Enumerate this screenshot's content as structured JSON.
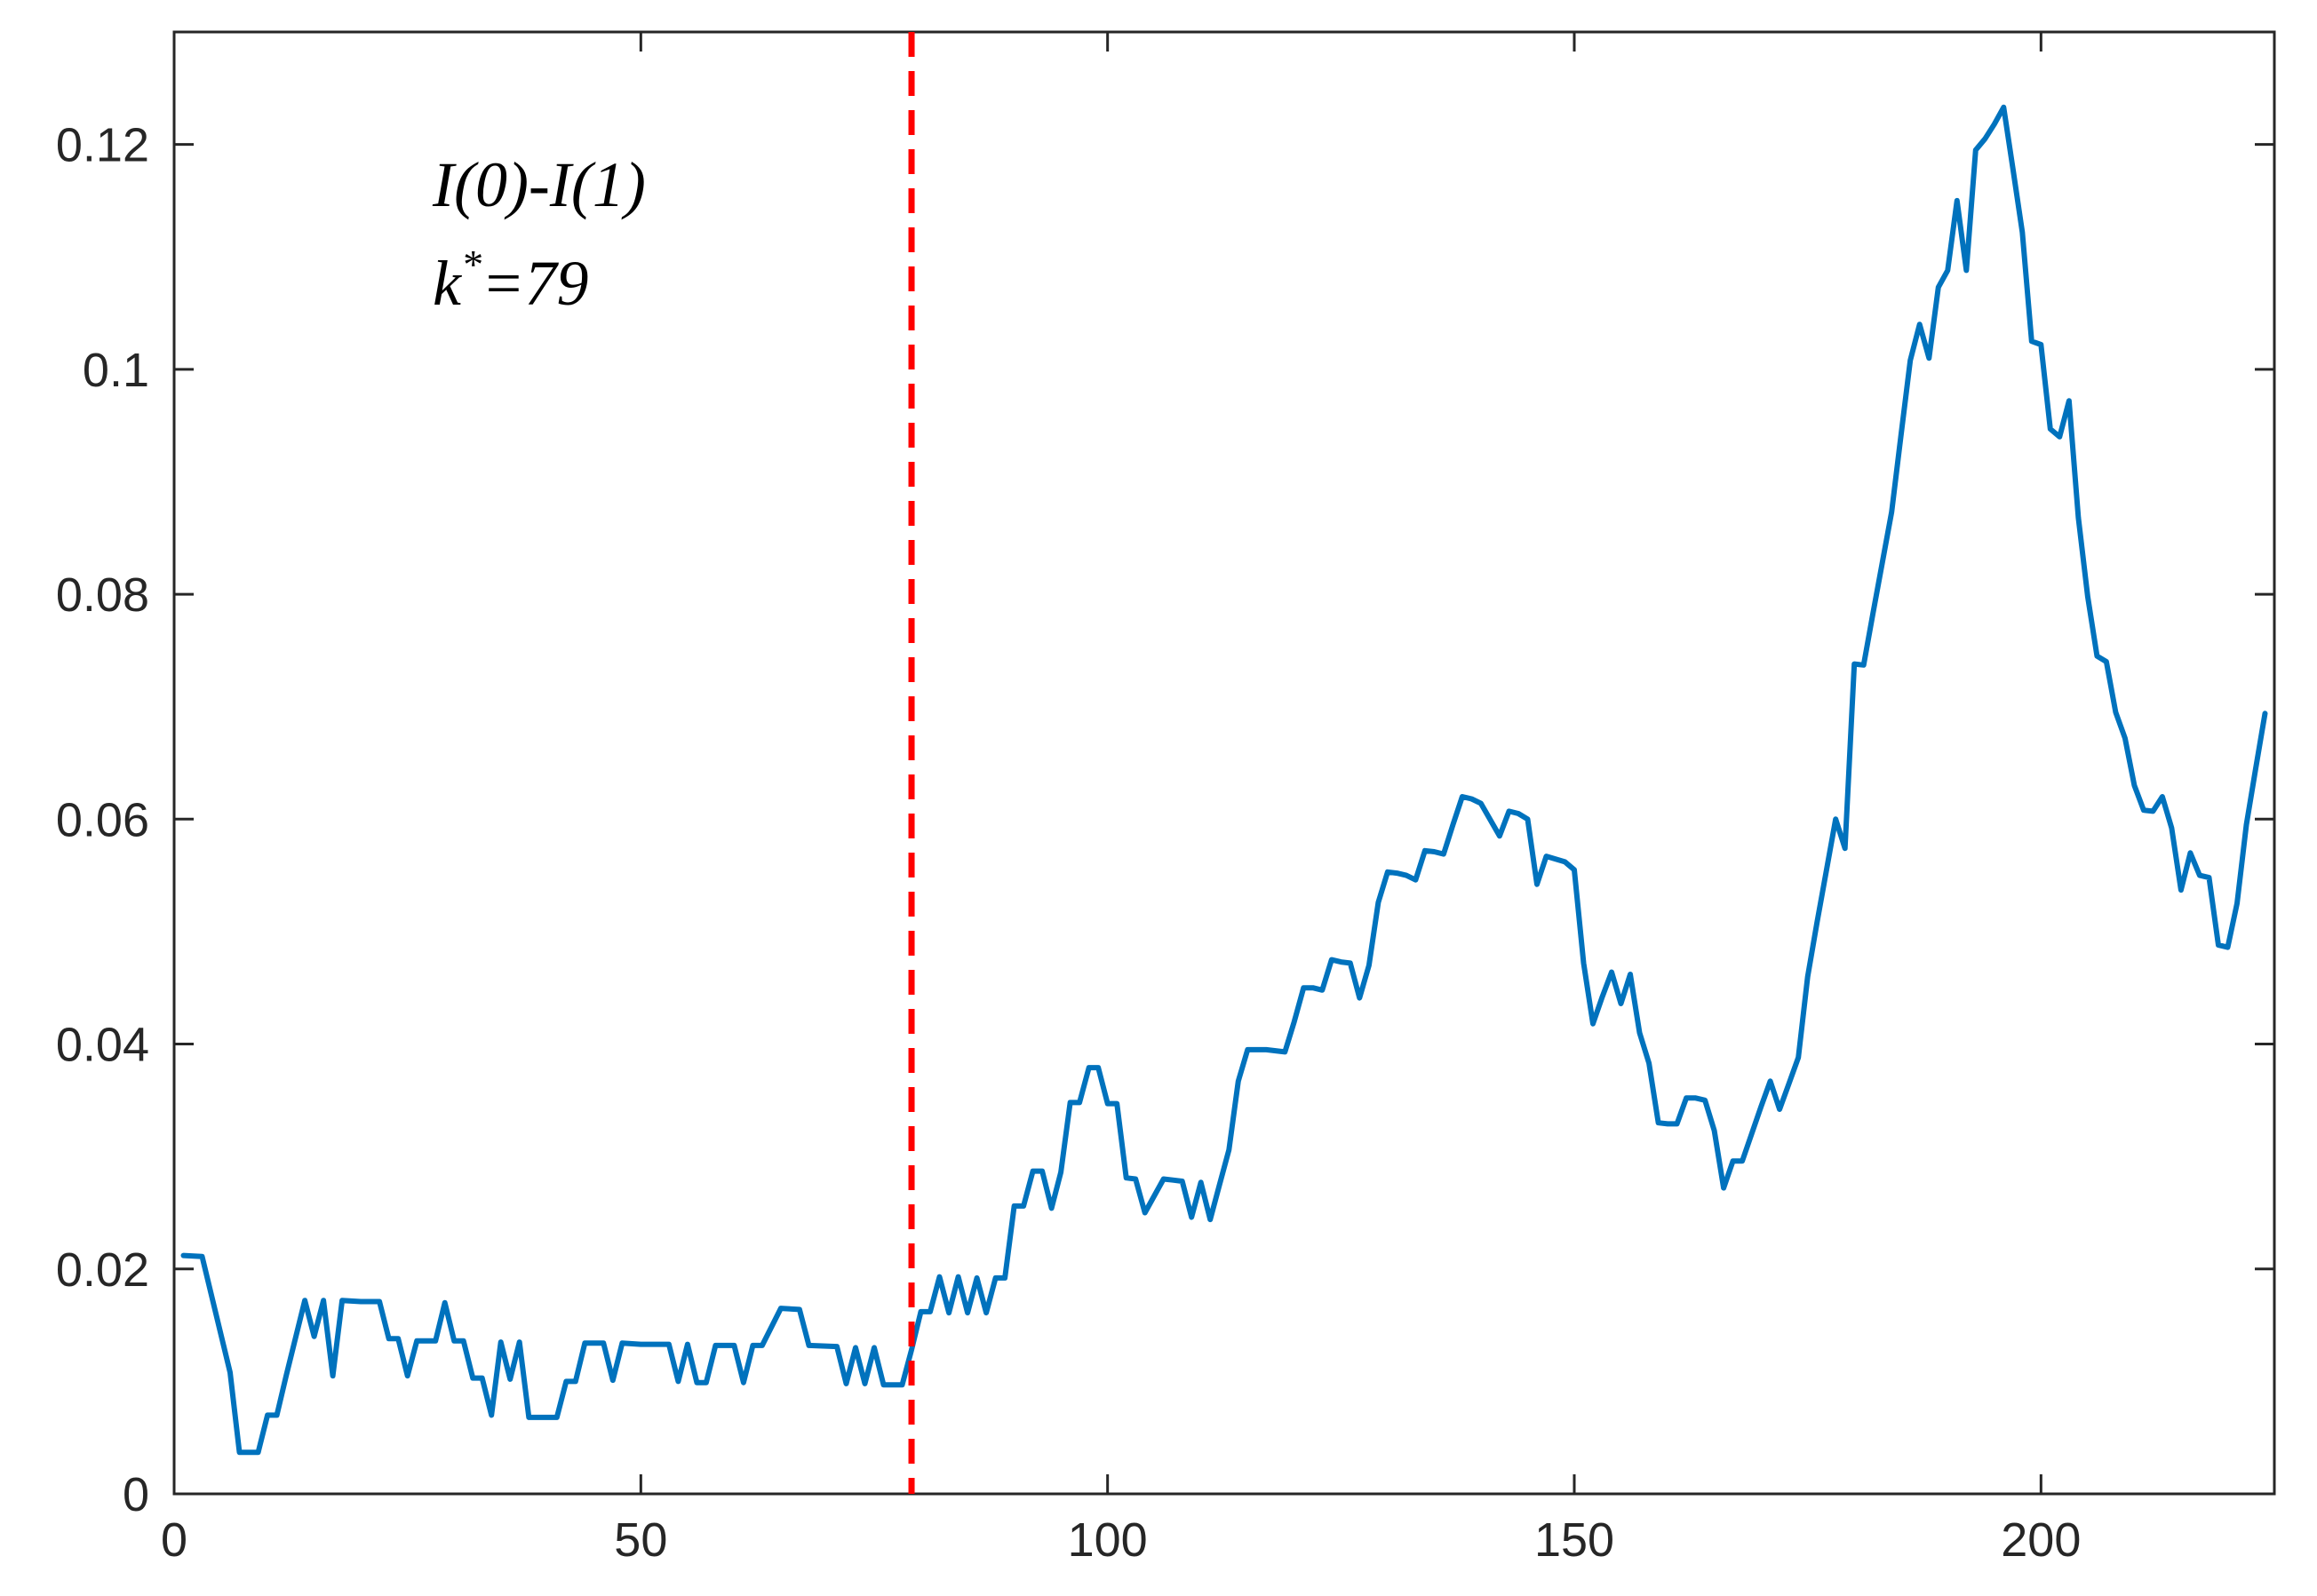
{
  "chart_data": {
    "type": "line",
    "title": "",
    "xlabel": "",
    "ylabel": "",
    "xlim": [
      0,
      225
    ],
    "ylim": [
      0,
      0.13
    ],
    "xticks": [
      0,
      50,
      100,
      150,
      200
    ],
    "xtick_labels": [
      "0",
      "50",
      "100",
      "150",
      "200"
    ],
    "yticks": [
      0,
      0.02,
      0.04,
      0.06,
      0.08,
      0.1,
      0.12
    ],
    "ytick_labels": [
      "0",
      "0.02",
      "0.04",
      "0.06",
      "0.08",
      "0.1",
      "0.12"
    ],
    "grid": false,
    "colors": {
      "series": "#0072BD",
      "changepoint": "#FF0000",
      "axes": "#262626"
    },
    "annotation": {
      "line1": "I(0)-I(1)",
      "line2_base": "k",
      "line2_sup": "*",
      "line2_rest": "=79"
    },
    "changepoint": {
      "x": 79,
      "style": "dashed"
    },
    "series": [
      {
        "x": [
          1,
          3,
          6,
          7,
          9,
          10,
          11,
          12,
          14,
          15,
          16,
          17,
          18,
          20,
          22,
          23,
          24,
          25,
          26,
          28,
          29,
          30,
          31,
          32,
          33,
          34,
          35,
          36,
          37,
          38,
          39,
          41,
          42,
          43,
          44,
          46,
          47,
          48,
          50,
          53,
          54,
          55,
          56,
          57,
          58,
          60,
          61,
          62,
          63,
          65,
          67,
          68,
          71,
          72,
          73,
          74,
          75,
          76,
          78,
          79,
          80,
          81,
          82,
          83,
          84,
          85,
          86,
          87,
          88,
          89,
          90,
          91,
          92,
          93,
          94,
          95,
          96,
          97,
          98,
          99,
          100,
          101,
          102,
          103,
          104,
          106,
          107,
          108,
          109,
          110,
          111,
          112,
          113,
          114,
          115,
          116,
          117,
          119,
          120,
          121,
          122,
          123,
          124,
          125,
          126,
          127,
          128,
          129,
          130,
          131,
          132,
          133,
          134,
          135,
          136,
          137,
          138,
          139,
          140,
          142,
          143,
          144,
          145,
          146,
          147,
          149,
          150,
          151,
          152,
          153,
          154,
          155,
          156,
          157,
          158,
          159,
          160,
          161,
          162,
          163,
          164,
          165,
          166,
          167,
          168,
          169,
          170,
          171,
          172,
          173,
          174,
          175,
          176,
          177,
          178,
          179,
          180,
          181,
          182,
          183,
          184,
          185,
          186,
          187,
          188,
          189,
          190,
          191,
          192,
          193,
          194,
          195,
          196,
          197,
          198,
          199,
          200,
          201,
          202,
          203,
          204,
          205,
          206,
          207,
          208,
          209,
          210,
          211,
          212,
          213,
          214,
          215,
          216,
          217,
          218,
          219,
          220,
          221,
          222,
          223,
          224
        ],
        "y": [
          0.0212,
          0.0211,
          0.0108,
          0.0037,
          0.0037,
          0.007,
          0.007,
          0.0105,
          0.0172,
          0.014,
          0.0172,
          0.0105,
          0.0172,
          0.0171,
          0.0171,
          0.0138,
          0.0138,
          0.0105,
          0.0136,
          0.0136,
          0.017,
          0.0136,
          0.0136,
          0.0103,
          0.0103,
          0.007,
          0.0135,
          0.0102,
          0.0135,
          0.0068,
          0.0068,
          0.0068,
          0.01,
          0.01,
          0.0134,
          0.0134,
          0.0101,
          0.0134,
          0.0133,
          0.0133,
          0.01,
          0.0133,
          0.0099,
          0.0099,
          0.0132,
          0.0132,
          0.0099,
          0.0132,
          0.0132,
          0.0165,
          0.0164,
          0.0132,
          0.0131,
          0.0098,
          0.013,
          0.0098,
          0.013,
          0.0097,
          0.0097,
          0.0128,
          0.0162,
          0.0162,
          0.0193,
          0.0161,
          0.0193,
          0.0161,
          0.0192,
          0.0161,
          0.0192,
          0.0192,
          0.0256,
          0.0256,
          0.0287,
          0.0287,
          0.0254,
          0.0286,
          0.0348,
          0.0348,
          0.0379,
          0.0379,
          0.0347,
          0.0347,
          0.0281,
          0.028,
          0.025,
          0.028,
          0.0279,
          0.0278,
          0.0246,
          0.0277,
          0.0244,
          0.0275,
          0.0306,
          0.0367,
          0.0395,
          0.0395,
          0.0395,
          0.0393,
          0.042,
          0.045,
          0.045,
          0.0448,
          0.0475,
          0.0473,
          0.0472,
          0.0441,
          0.047,
          0.0526,
          0.0553,
          0.0552,
          0.055,
          0.0546,
          0.0572,
          0.0571,
          0.0569,
          0.0595,
          0.062,
          0.0618,
          0.0614,
          0.0585,
          0.0607,
          0.0605,
          0.06,
          0.0542,
          0.0567,
          0.0562,
          0.0555,
          0.0472,
          0.0418,
          0.0442,
          0.0464,
          0.0436,
          0.0462,
          0.041,
          0.0383,
          0.033,
          0.0329,
          0.0329,
          0.0352,
          0.0352,
          0.035,
          0.0323,
          0.0272,
          0.0296,
          0.0296,
          0.032,
          0.0344,
          0.0367,
          0.0342,
          0.0365,
          0.0388,
          0.046,
          0.0508,
          0.0554,
          0.06,
          0.0574,
          0.0738,
          0.0737,
          0.0783,
          0.0828,
          0.0873,
          0.0941,
          0.1008,
          0.104,
          0.101,
          0.1073,
          0.1088,
          0.115,
          0.1088,
          0.1195,
          0.1205,
          0.1218,
          0.1233,
          0.1178,
          0.1122,
          0.1025,
          0.1022,
          0.0947,
          0.094,
          0.0972,
          0.0868,
          0.0798,
          0.0745,
          0.074,
          0.0695,
          0.0672,
          0.063,
          0.0608,
          0.0607,
          0.062,
          0.0592,
          0.0537,
          0.057,
          0.055,
          0.0548,
          0.0488,
          0.0486,
          0.0525,
          0.0595,
          0.0645,
          0.0694
        ]
      }
    ]
  }
}
